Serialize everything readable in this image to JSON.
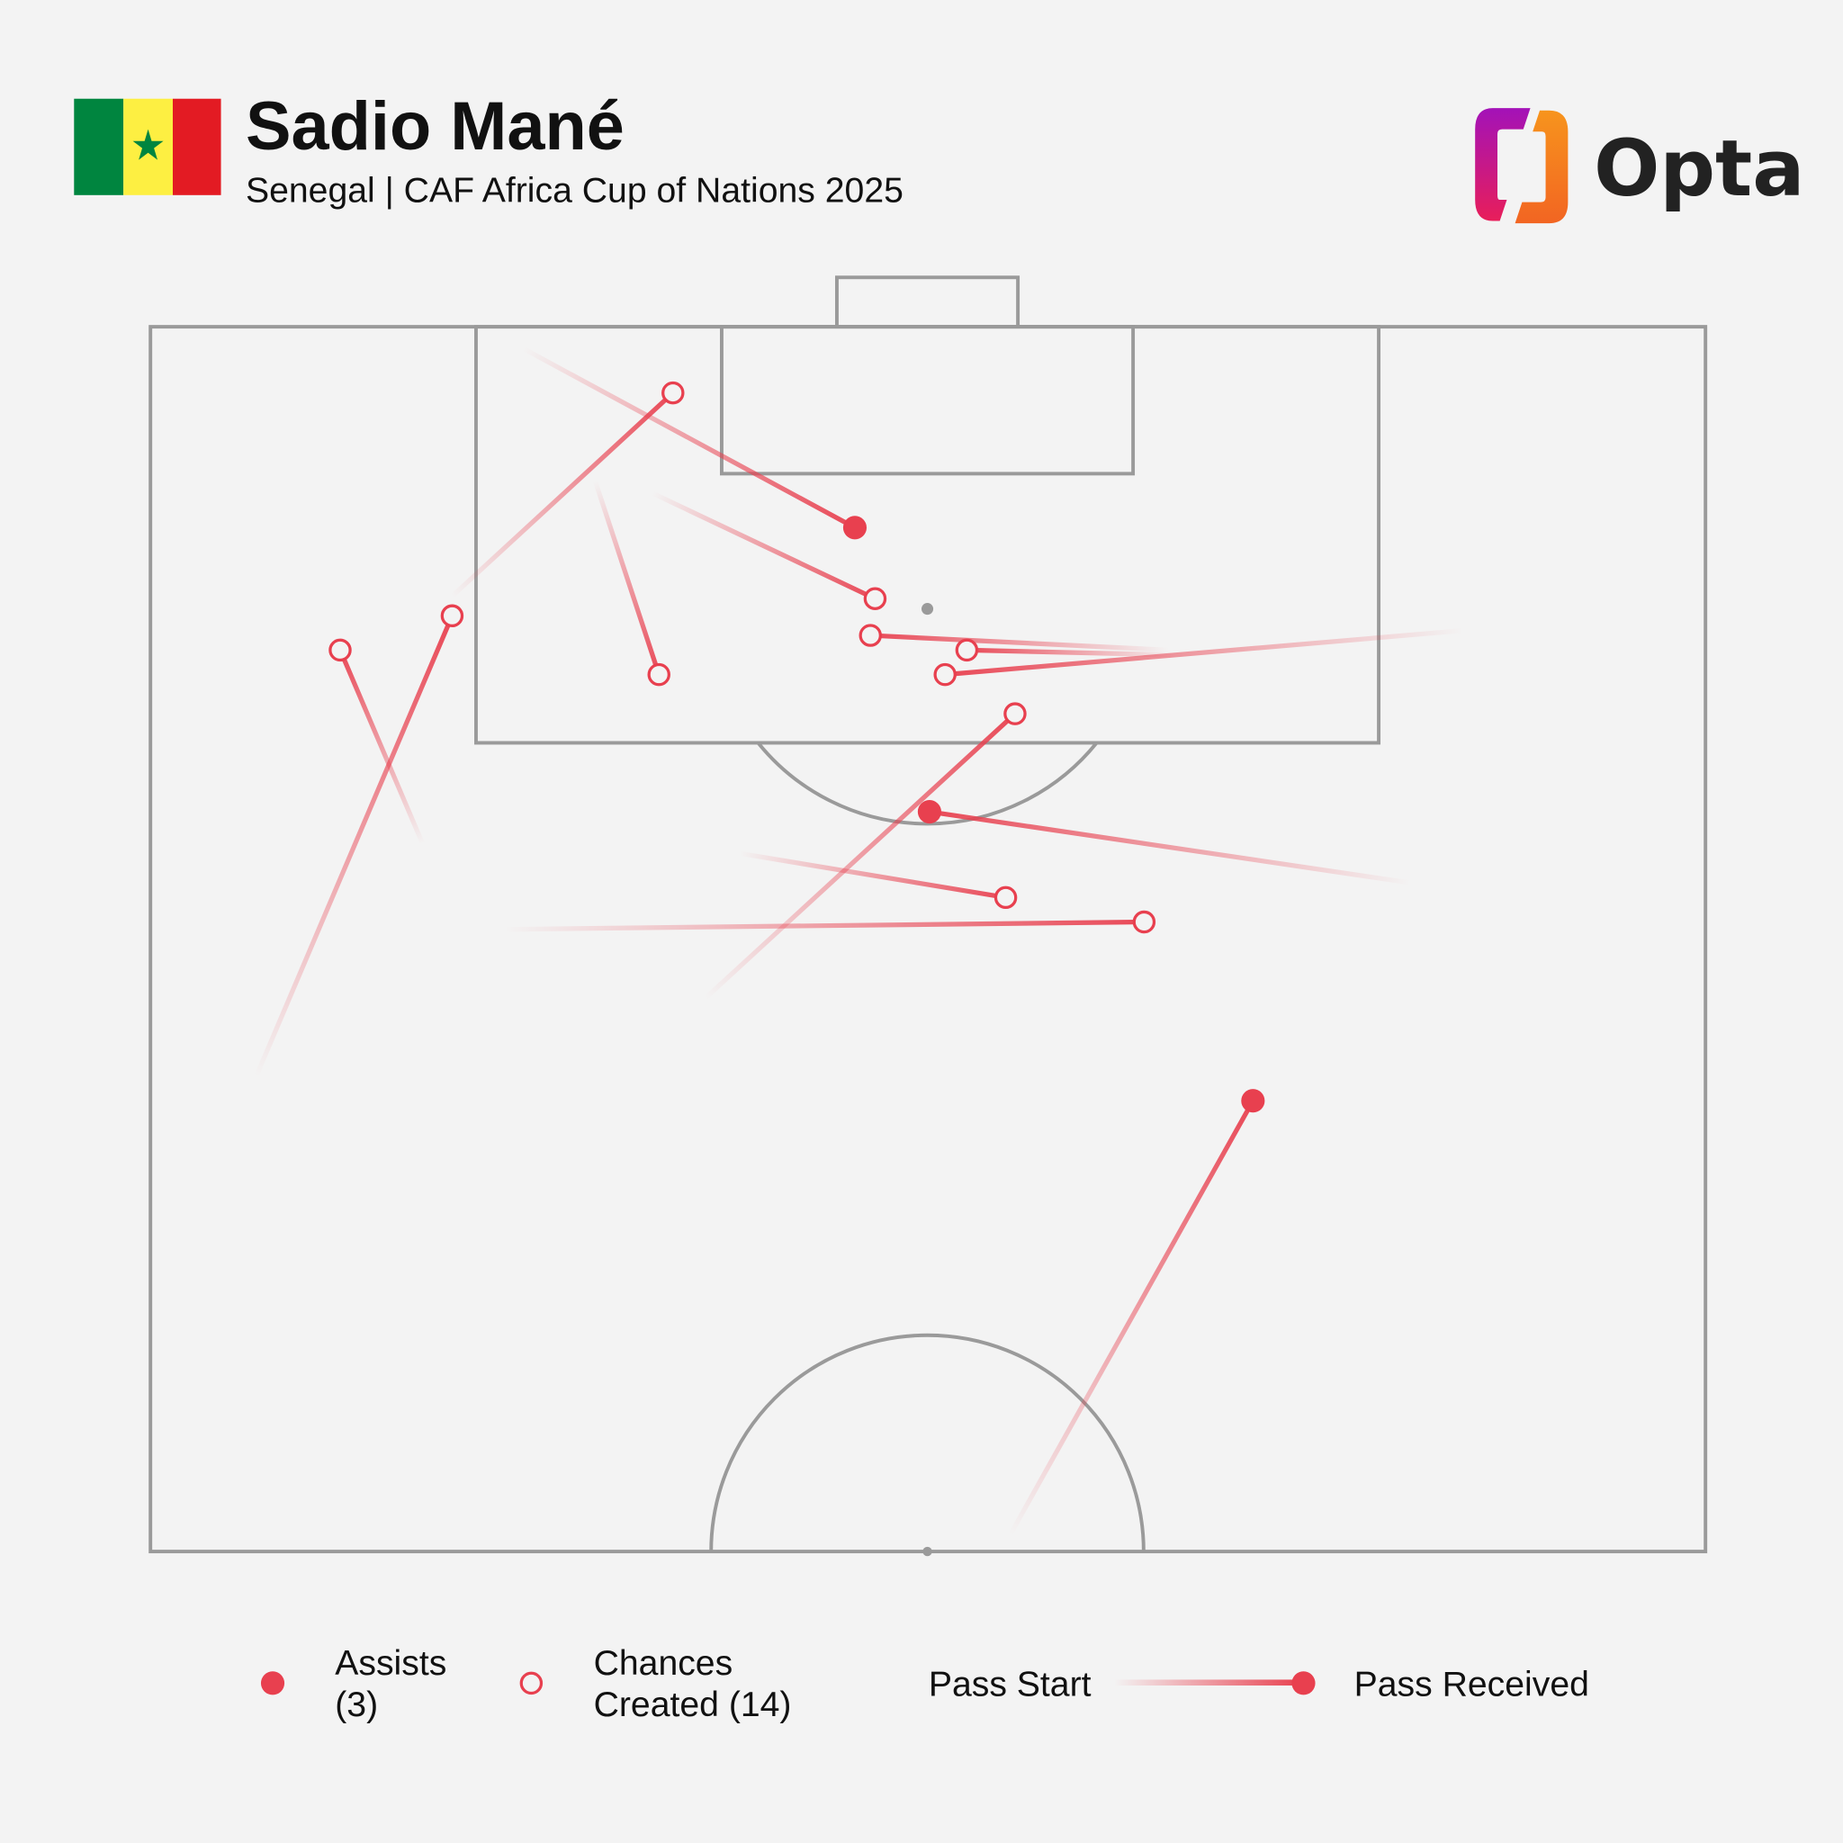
{
  "header": {
    "player_name": "Sadio Mané",
    "subtitle": "Senegal | CAF Africa Cup of Nations 2025",
    "flag": {
      "country": "Senegal",
      "colors": [
        "#00853f",
        "#fdef42",
        "#e31b23"
      ],
      "star_color": "#00853f"
    },
    "logo_text": "Opta"
  },
  "legend": {
    "assists_line1": "Assists",
    "assists_line2": "(3)",
    "chances_line1": "Chances",
    "chances_line2": "Created (14)",
    "pass_start": "Pass Start",
    "pass_received": "Pass Received"
  },
  "colors": {
    "pass": "#e8404f",
    "pitch_lines": "#9a9a9a",
    "background": "#f3f3f3"
  },
  "chart_data": {
    "type": "scatter",
    "subtype": "pass-map",
    "pitch": "attacking half, goal at top",
    "coordinate_system": "Opta 0-100 (x = length toward goal, y = width)",
    "x_range": [
      50,
      100
    ],
    "y_range": [
      0,
      100
    ],
    "passes": [
      {
        "start": [
          99.1,
          24.0
        ],
        "end": [
          91.8,
          45.3
        ],
        "assist": true
      },
      {
        "start": [
          93.7,
          28.6
        ],
        "end": [
          85.8,
          32.7
        ],
        "assist": false
      },
      {
        "start": [
          93.2,
          32.3
        ],
        "end": [
          88.9,
          46.6
        ],
        "assist": false
      },
      {
        "start": [
          86.8,
          65.5
        ],
        "end": [
          87.4,
          46.3
        ],
        "assist": false
      },
      {
        "start": [
          87.6,
          84.4
        ],
        "end": [
          85.8,
          51.1
        ],
        "assist": false
      },
      {
        "start": [
          86.6,
          65.9
        ],
        "end": [
          86.8,
          52.5
        ],
        "assist": false
      },
      {
        "start": [
          89.0,
          19.4
        ],
        "end": [
          97.3,
          33.6
        ],
        "assist": false
      },
      {
        "start": [
          69.4,
          6.8
        ],
        "end": [
          88.2,
          19.4
        ],
        "assist": false
      },
      {
        "start": [
          78.9,
          17.5
        ],
        "end": [
          86.8,
          12.2
        ],
        "assist": false
      },
      {
        "start": [
          72.6,
          35.7
        ],
        "end": [
          84.2,
          55.6
        ],
        "assist": false
      },
      {
        "start": [
          77.3,
          81.0
        ],
        "end": [
          80.2,
          50.1
        ],
        "assist": true
      },
      {
        "start": [
          78.5,
          37.9
        ],
        "end": [
          76.7,
          55.0
        ],
        "assist": false
      },
      {
        "start": [
          75.4,
          22.8
        ],
        "end": [
          75.7,
          63.9
        ],
        "assist": false
      },
      {
        "start": [
          50.7,
          55.3
        ],
        "end": [
          68.4,
          70.9
        ],
        "assist": true
      }
    ],
    "assists_count": 3,
    "chances_created_count": 14
  }
}
